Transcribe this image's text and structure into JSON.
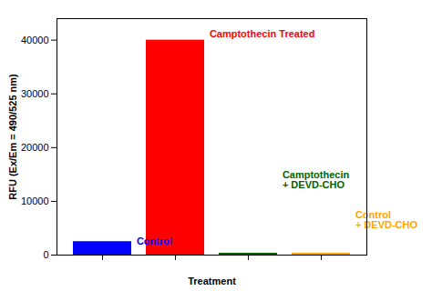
{
  "chart_data": {
    "type": "bar",
    "categories": [
      "Control",
      "Camptothecin Treated",
      "Camptothecin + DEVD-CHO",
      "Control + DEVD-CHO"
    ],
    "values": [
      2500,
      40000,
      350,
      350
    ],
    "colors": [
      "#0000FF",
      "#FF0000",
      "#006400",
      "#FFA500"
    ],
    "xlabel": "Treatment",
    "ylabel": "RFU (Ex/Em = 490/525 nm)",
    "ylim": [
      0,
      44000
    ],
    "yticks": [
      0,
      10000,
      20000,
      30000,
      40000
    ],
    "tick_labels": "y",
    "grid": false,
    "annotations": [
      {
        "text": "Control",
        "x": "Control",
        "y": 2600,
        "color": "#0000FF"
      },
      {
        "text": "Camptothecin Treated",
        "x": "Camptothecin Treated",
        "y": 41200,
        "color": "#FF0000"
      },
      {
        "text": "Camptothecin\n+ DEVD-CHO",
        "x": "Camptothecin + DEVD-CHO",
        "y": 14000,
        "color": "#006400"
      },
      {
        "text": "Control\n+ DEVD-CHO",
        "x": "Control + DEVD-CHO",
        "y": 6500,
        "color": "#FFA500"
      }
    ]
  }
}
